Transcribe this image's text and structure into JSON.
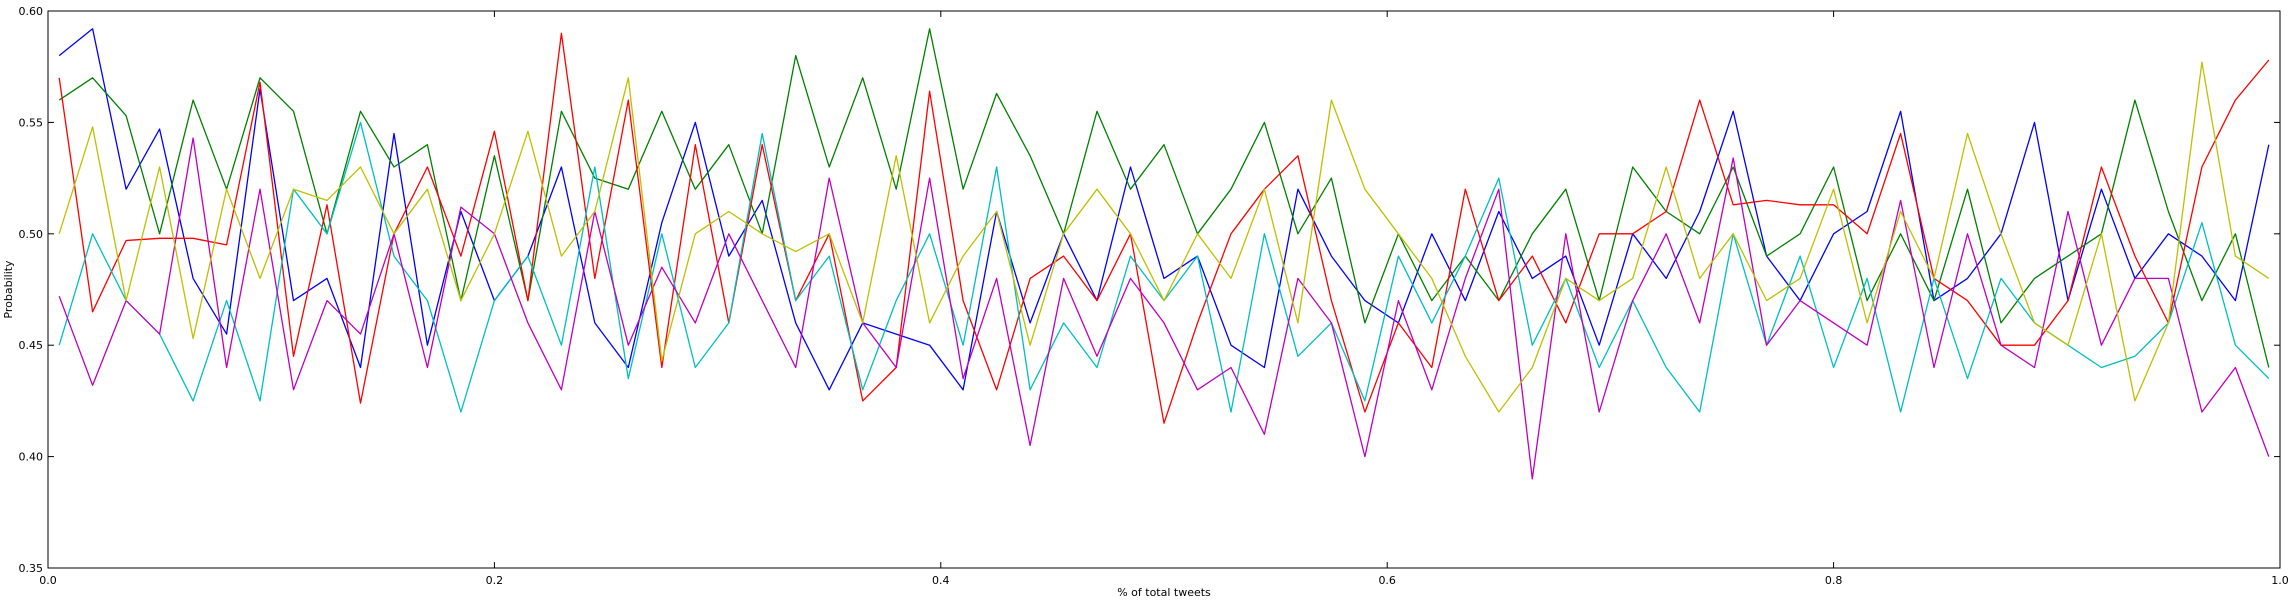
{
  "chart_data": {
    "type": "line",
    "title": "",
    "xlabel": "% of total tweets",
    "ylabel": "Probability",
    "xlim": [
      0.0,
      1.0
    ],
    "ylim": [
      0.35,
      0.6
    ],
    "xticks": [
      "0.0",
      "0.2",
      "0.4",
      "0.6",
      "0.8",
      "1.0"
    ],
    "yticks": [
      "0.35",
      "0.40",
      "0.45",
      "0.50",
      "0.55",
      "0.60"
    ],
    "grid": false,
    "legend": "none",
    "series": [
      {
        "color": "#0000ff",
        "x": [
          0.005,
          0.02,
          0.035,
          0.05,
          0.065,
          0.08,
          0.095,
          0.11,
          0.125,
          0.14,
          0.155,
          0.17,
          0.185,
          0.2,
          0.215,
          0.23,
          0.245,
          0.26,
          0.275,
          0.29,
          0.305,
          0.32,
          0.335,
          0.35,
          0.365,
          0.38,
          0.395,
          0.41,
          0.425,
          0.44,
          0.455,
          0.47,
          0.485,
          0.5,
          0.515,
          0.53,
          0.545,
          0.56,
          0.575,
          0.59,
          0.605,
          0.62,
          0.635,
          0.65,
          0.665,
          0.68,
          0.695,
          0.71,
          0.725,
          0.74,
          0.755,
          0.77,
          0.785,
          0.8,
          0.815,
          0.83,
          0.845,
          0.86,
          0.875,
          0.89,
          0.905,
          0.92,
          0.935,
          0.95,
          0.965,
          0.98,
          0.995
        ],
        "values": [
          0.58,
          0.592,
          0.52,
          0.547,
          0.48,
          0.455,
          0.565,
          0.47,
          0.48,
          0.44,
          0.545,
          0.45,
          0.51,
          0.47,
          0.49,
          0.53,
          0.46,
          0.44,
          0.505,
          0.55,
          0.49,
          0.515,
          0.46,
          0.43,
          0.46,
          0.455,
          0.45,
          0.43,
          0.51,
          0.46,
          0.5,
          0.47,
          0.53,
          0.48,
          0.49,
          0.45,
          0.44,
          0.52,
          0.49,
          0.47,
          0.46,
          0.5,
          0.47,
          0.51,
          0.48,
          0.49,
          0.45,
          0.5,
          0.48,
          0.51,
          0.555,
          0.49,
          0.47,
          0.5,
          0.51,
          0.555,
          0.47,
          0.48,
          0.5,
          0.55,
          0.47,
          0.52,
          0.48,
          0.5,
          0.49,
          0.47,
          0.54
        ]
      },
      {
        "color": "#008000",
        "x": [
          0.005,
          0.02,
          0.035,
          0.05,
          0.065,
          0.08,
          0.095,
          0.11,
          0.125,
          0.14,
          0.155,
          0.17,
          0.185,
          0.2,
          0.215,
          0.23,
          0.245,
          0.26,
          0.275,
          0.29,
          0.305,
          0.32,
          0.335,
          0.35,
          0.365,
          0.38,
          0.395,
          0.41,
          0.425,
          0.44,
          0.455,
          0.47,
          0.485,
          0.5,
          0.515,
          0.53,
          0.545,
          0.56,
          0.575,
          0.59,
          0.605,
          0.62,
          0.635,
          0.65,
          0.665,
          0.68,
          0.695,
          0.71,
          0.725,
          0.74,
          0.755,
          0.77,
          0.785,
          0.8,
          0.815,
          0.83,
          0.845,
          0.86,
          0.875,
          0.89,
          0.905,
          0.92,
          0.935,
          0.95,
          0.965,
          0.98,
          0.995
        ],
        "values": [
          0.56,
          0.57,
          0.553,
          0.5,
          0.56,
          0.52,
          0.57,
          0.555,
          0.5,
          0.555,
          0.53,
          0.54,
          0.47,
          0.535,
          0.47,
          0.555,
          0.525,
          0.52,
          0.555,
          0.52,
          0.54,
          0.5,
          0.58,
          0.53,
          0.57,
          0.52,
          0.592,
          0.52,
          0.563,
          0.535,
          0.5,
          0.555,
          0.52,
          0.54,
          0.5,
          0.52,
          0.55,
          0.5,
          0.525,
          0.46,
          0.5,
          0.47,
          0.49,
          0.47,
          0.5,
          0.52,
          0.47,
          0.53,
          0.51,
          0.5,
          0.53,
          0.49,
          0.5,
          0.53,
          0.47,
          0.5,
          0.47,
          0.52,
          0.46,
          0.48,
          0.49,
          0.5,
          0.56,
          0.51,
          0.47,
          0.5,
          0.44
        ]
      },
      {
        "color": "#ff0000",
        "x": [
          0.005,
          0.02,
          0.035,
          0.05,
          0.065,
          0.08,
          0.095,
          0.11,
          0.125,
          0.14,
          0.155,
          0.17,
          0.185,
          0.2,
          0.215,
          0.23,
          0.245,
          0.26,
          0.275,
          0.29,
          0.305,
          0.32,
          0.335,
          0.35,
          0.365,
          0.38,
          0.395,
          0.41,
          0.425,
          0.44,
          0.455,
          0.47,
          0.485,
          0.5,
          0.515,
          0.53,
          0.545,
          0.56,
          0.575,
          0.59,
          0.605,
          0.62,
          0.635,
          0.65,
          0.665,
          0.68,
          0.695,
          0.71,
          0.725,
          0.74,
          0.755,
          0.77,
          0.785,
          0.8,
          0.815,
          0.83,
          0.845,
          0.86,
          0.875,
          0.89,
          0.905,
          0.92,
          0.935,
          0.95,
          0.965,
          0.98,
          0.995
        ],
        "values": [
          0.57,
          0.465,
          0.497,
          0.498,
          0.498,
          0.495,
          0.568,
          0.445,
          0.513,
          0.424,
          0.5,
          0.53,
          0.49,
          0.546,
          0.47,
          0.59,
          0.48,
          0.56,
          0.44,
          0.54,
          0.46,
          0.54,
          0.47,
          0.5,
          0.425,
          0.44,
          0.564,
          0.47,
          0.43,
          0.48,
          0.49,
          0.47,
          0.5,
          0.415,
          0.46,
          0.5,
          0.52,
          0.535,
          0.47,
          0.42,
          0.46,
          0.44,
          0.52,
          0.47,
          0.49,
          0.46,
          0.5,
          0.5,
          0.51,
          0.56,
          0.513,
          0.515,
          0.513,
          0.513,
          0.5,
          0.545,
          0.48,
          0.47,
          0.45,
          0.45,
          0.47,
          0.53,
          0.49,
          0.46,
          0.53,
          0.56,
          0.578
        ]
      },
      {
        "color": "#00bfbf",
        "x": [
          0.005,
          0.02,
          0.035,
          0.05,
          0.065,
          0.08,
          0.095,
          0.11,
          0.125,
          0.14,
          0.155,
          0.17,
          0.185,
          0.2,
          0.215,
          0.23,
          0.245,
          0.26,
          0.275,
          0.29,
          0.305,
          0.32,
          0.335,
          0.35,
          0.365,
          0.38,
          0.395,
          0.41,
          0.425,
          0.44,
          0.455,
          0.47,
          0.485,
          0.5,
          0.515,
          0.53,
          0.545,
          0.56,
          0.575,
          0.59,
          0.605,
          0.62,
          0.635,
          0.65,
          0.665,
          0.68,
          0.695,
          0.71,
          0.725,
          0.74,
          0.755,
          0.77,
          0.785,
          0.8,
          0.815,
          0.83,
          0.845,
          0.86,
          0.875,
          0.89,
          0.905,
          0.92,
          0.935,
          0.95,
          0.965,
          0.98,
          0.995
        ],
        "values": [
          0.45,
          0.5,
          0.47,
          0.455,
          0.425,
          0.47,
          0.425,
          0.52,
          0.5,
          0.55,
          0.49,
          0.47,
          0.42,
          0.47,
          0.49,
          0.45,
          0.53,
          0.435,
          0.5,
          0.44,
          0.46,
          0.545,
          0.47,
          0.49,
          0.43,
          0.47,
          0.5,
          0.45,
          0.53,
          0.43,
          0.46,
          0.44,
          0.49,
          0.47,
          0.49,
          0.42,
          0.5,
          0.445,
          0.46,
          0.425,
          0.49,
          0.46,
          0.49,
          0.525,
          0.45,
          0.48,
          0.44,
          0.47,
          0.44,
          0.42,
          0.5,
          0.45,
          0.49,
          0.44,
          0.48,
          0.42,
          0.48,
          0.435,
          0.48,
          0.46,
          0.45,
          0.44,
          0.445,
          0.46,
          0.505,
          0.45,
          0.435
        ]
      },
      {
        "color": "#bf00bf",
        "x": [
          0.005,
          0.02,
          0.035,
          0.05,
          0.065,
          0.08,
          0.095,
          0.11,
          0.125,
          0.14,
          0.155,
          0.17,
          0.185,
          0.2,
          0.215,
          0.23,
          0.245,
          0.26,
          0.275,
          0.29,
          0.305,
          0.32,
          0.335,
          0.35,
          0.365,
          0.38,
          0.395,
          0.41,
          0.425,
          0.44,
          0.455,
          0.47,
          0.485,
          0.5,
          0.515,
          0.53,
          0.545,
          0.56,
          0.575,
          0.59,
          0.605,
          0.62,
          0.635,
          0.65,
          0.665,
          0.68,
          0.695,
          0.71,
          0.725,
          0.74,
          0.755,
          0.77,
          0.785,
          0.8,
          0.815,
          0.83,
          0.845,
          0.86,
          0.875,
          0.89,
          0.905,
          0.92,
          0.935,
          0.95,
          0.965,
          0.98,
          0.995
        ],
        "values": [
          0.472,
          0.432,
          0.47,
          0.455,
          0.543,
          0.44,
          0.52,
          0.43,
          0.47,
          0.455,
          0.5,
          0.44,
          0.512,
          0.5,
          0.46,
          0.43,
          0.51,
          0.45,
          0.485,
          0.46,
          0.5,
          0.47,
          0.44,
          0.525,
          0.46,
          0.44,
          0.525,
          0.435,
          0.48,
          0.405,
          0.48,
          0.445,
          0.48,
          0.46,
          0.43,
          0.44,
          0.41,
          0.48,
          0.46,
          0.4,
          0.47,
          0.43,
          0.48,
          0.52,
          0.39,
          0.5,
          0.42,
          0.47,
          0.5,
          0.46,
          0.534,
          0.45,
          0.47,
          0.46,
          0.45,
          0.515,
          0.44,
          0.5,
          0.45,
          0.44,
          0.51,
          0.45,
          0.48,
          0.48,
          0.42,
          0.44,
          0.4
        ]
      },
      {
        "color": "#bfbf00",
        "x": [
          0.005,
          0.02,
          0.035,
          0.05,
          0.065,
          0.08,
          0.095,
          0.11,
          0.125,
          0.14,
          0.155,
          0.17,
          0.185,
          0.2,
          0.215,
          0.23,
          0.245,
          0.26,
          0.275,
          0.29,
          0.305,
          0.32,
          0.335,
          0.35,
          0.365,
          0.38,
          0.395,
          0.41,
          0.425,
          0.44,
          0.455,
          0.47,
          0.485,
          0.5,
          0.515,
          0.53,
          0.545,
          0.56,
          0.575,
          0.59,
          0.605,
          0.62,
          0.635,
          0.65,
          0.665,
          0.68,
          0.695,
          0.71,
          0.725,
          0.74,
          0.755,
          0.77,
          0.785,
          0.8,
          0.815,
          0.83,
          0.845,
          0.86,
          0.875,
          0.89,
          0.905,
          0.92,
          0.935,
          0.95,
          0.965,
          0.98,
          0.995
        ],
        "values": [
          0.5,
          0.548,
          0.47,
          0.53,
          0.453,
          0.52,
          0.48,
          0.52,
          0.515,
          0.53,
          0.5,
          0.52,
          0.47,
          0.5,
          0.546,
          0.49,
          0.51,
          0.57,
          0.443,
          0.5,
          0.51,
          0.5,
          0.492,
          0.5,
          0.46,
          0.535,
          0.46,
          0.49,
          0.51,
          0.45,
          0.5,
          0.52,
          0.5,
          0.47,
          0.5,
          0.48,
          0.52,
          0.46,
          0.56,
          0.52,
          0.5,
          0.48,
          0.445,
          0.42,
          0.44,
          0.48,
          0.47,
          0.48,
          0.53,
          0.48,
          0.5,
          0.47,
          0.48,
          0.52,
          0.46,
          0.51,
          0.48,
          0.545,
          0.5,
          0.46,
          0.45,
          0.5,
          0.425,
          0.46,
          0.577,
          0.49,
          0.48
        ]
      }
    ]
  }
}
